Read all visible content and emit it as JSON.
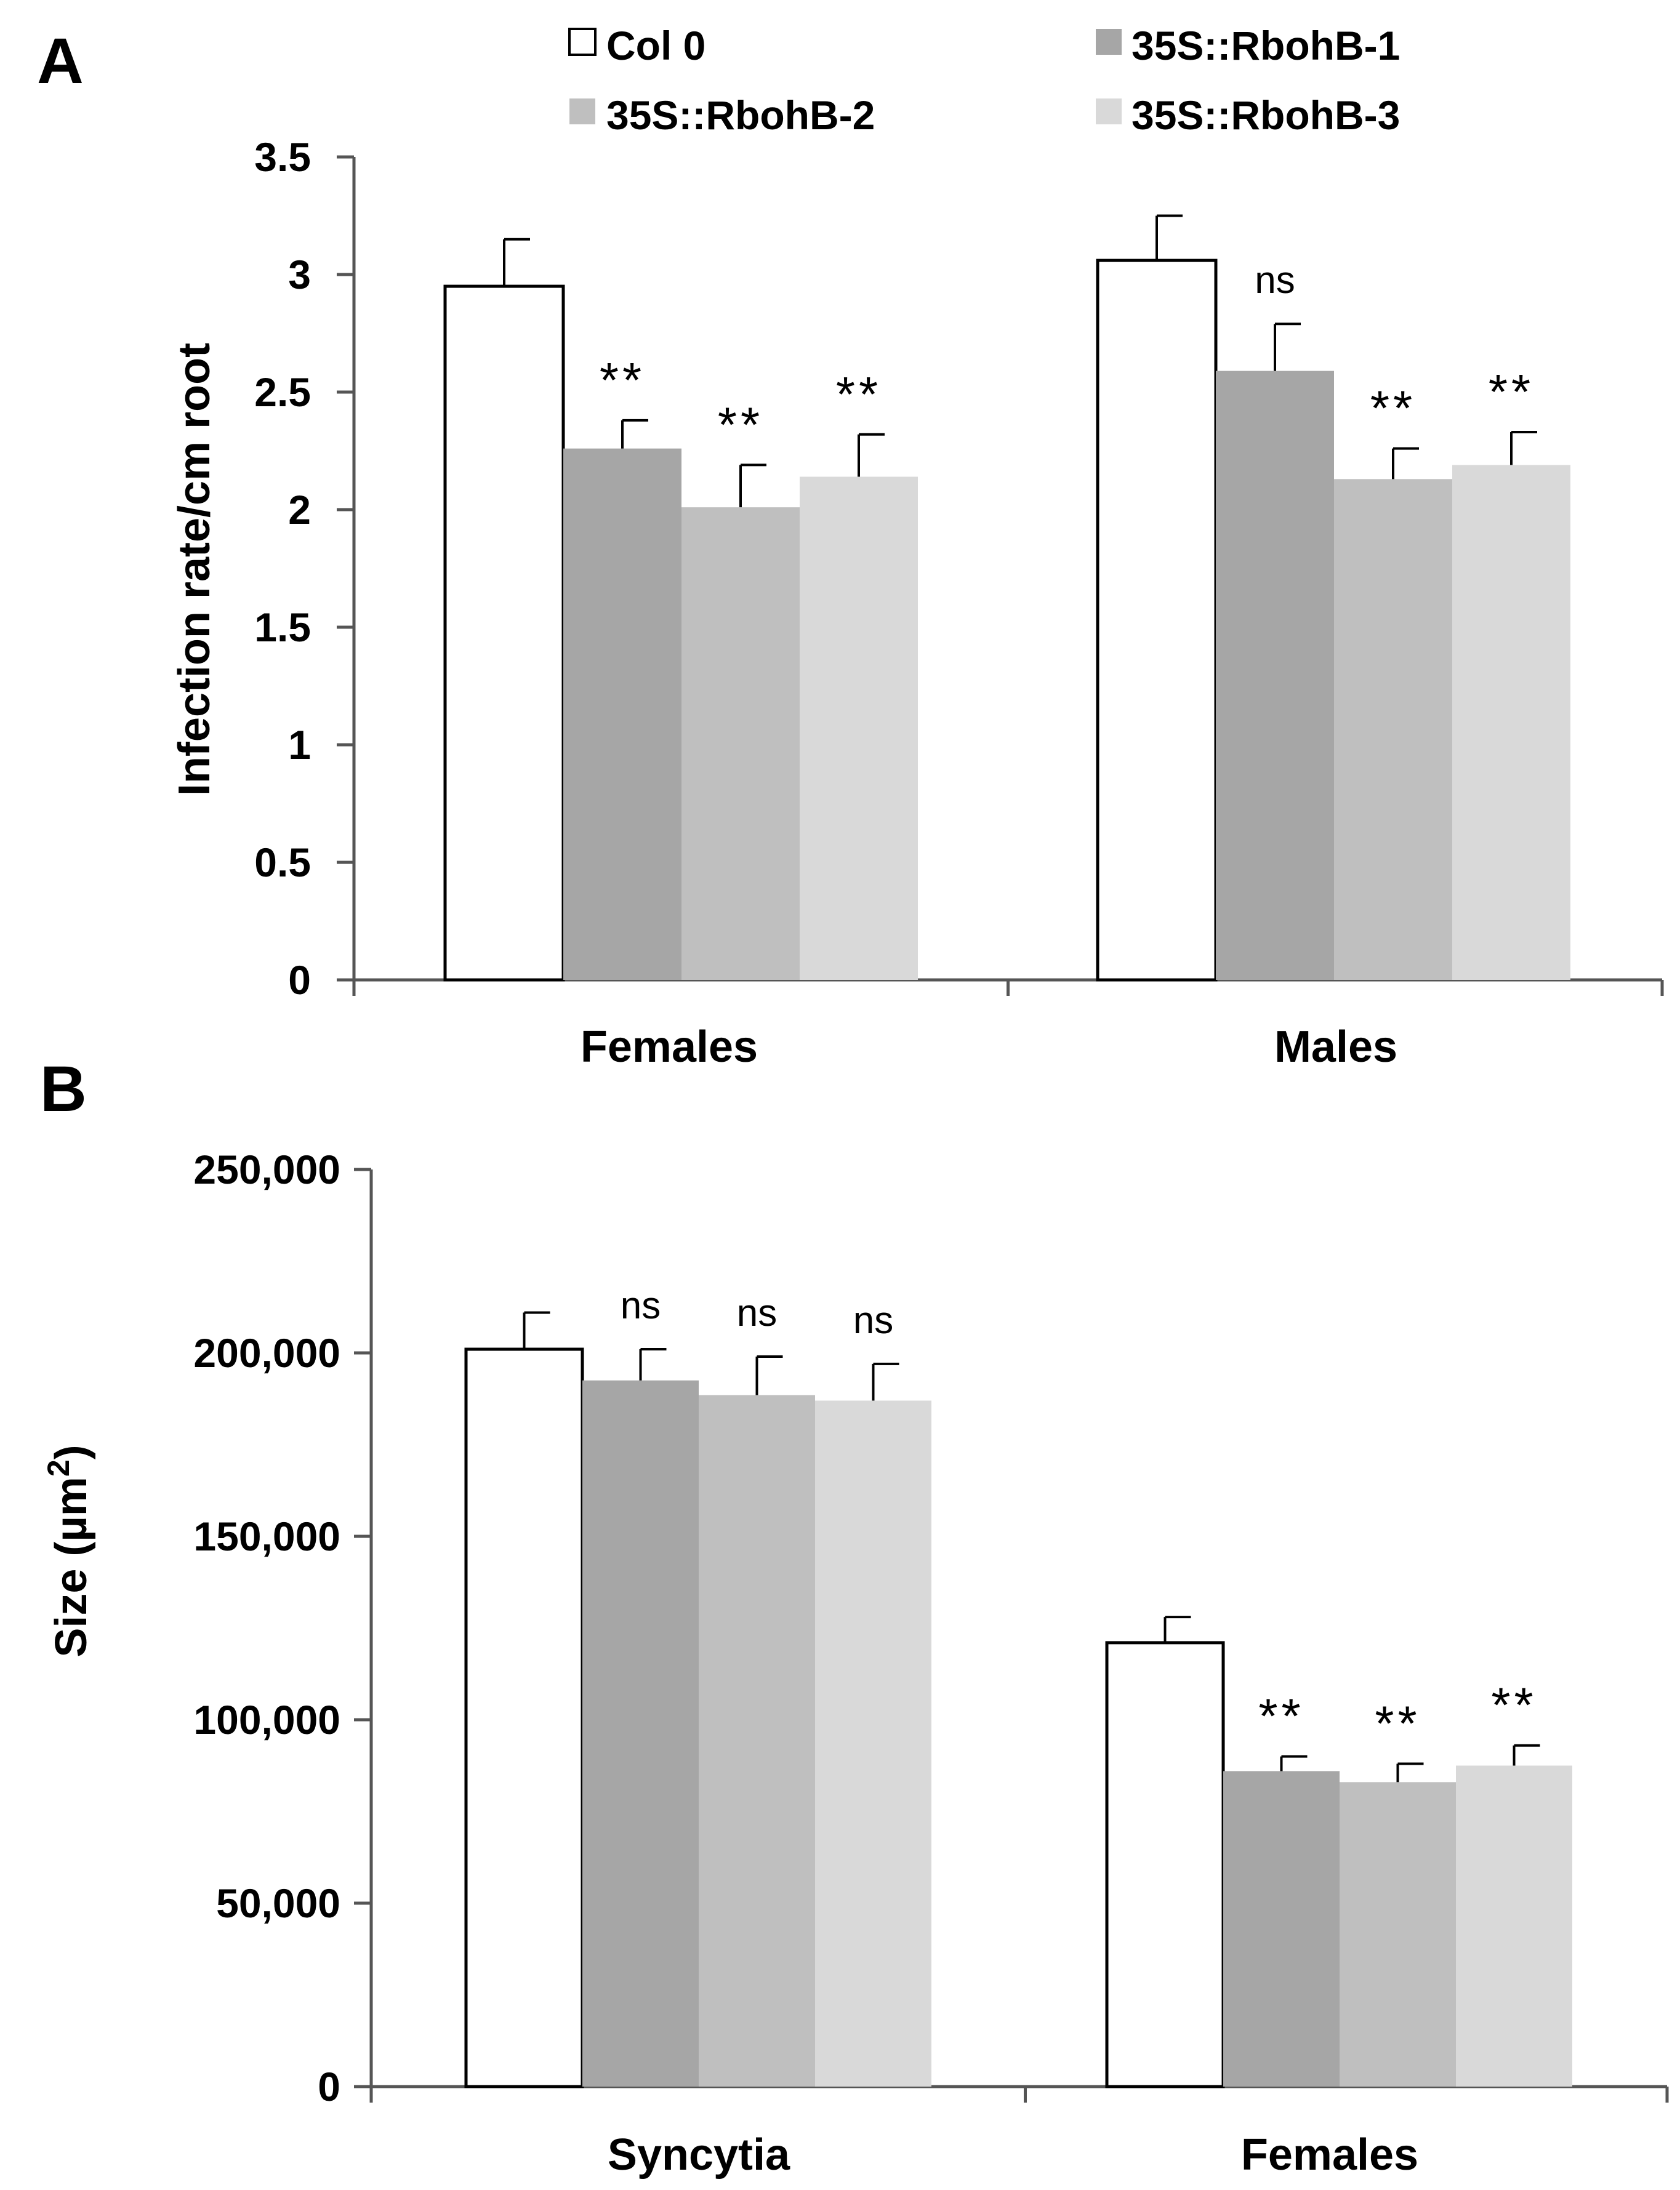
{
  "legend": [
    {
      "name": "Col 0",
      "color": "#ffffff"
    },
    {
      "name": "35S::RbohB-1",
      "color": "#a6a6a6"
    },
    {
      "name": "35S::RbohB-2",
      "color": "#bfbfbf"
    },
    {
      "name": "35S::RbohB-3",
      "color": "#d9d9d9"
    }
  ],
  "chart_data": [
    {
      "panel": "A",
      "type": "bar",
      "ylabel": "Infection rate/cm root",
      "xlabel": "",
      "ylim": [
        0,
        3.5
      ],
      "yticks": [
        "0",
        "0.5",
        "1",
        "1.5",
        "2",
        "2.5",
        "3",
        "3.5"
      ],
      "categories": [
        "Females",
        "Males"
      ],
      "series": [
        {
          "name": "Col 0",
          "values": [
            2.95,
            3.06
          ],
          "errors": [
            0.2,
            0.19
          ],
          "sig": [
            "",
            ""
          ]
        },
        {
          "name": "35S::RbohB-1",
          "values": [
            2.26,
            2.59
          ],
          "errors": [
            0.12,
            0.2
          ],
          "sig": [
            "**",
            "ns"
          ]
        },
        {
          "name": "35S::RbohB-2",
          "values": [
            2.01,
            2.13
          ],
          "errors": [
            0.18,
            0.13
          ],
          "sig": [
            "**",
            "**"
          ]
        },
        {
          "name": "35S::RbohB-3",
          "values": [
            2.14,
            2.19
          ],
          "errors": [
            0.18,
            0.14
          ],
          "sig": [
            "**",
            "**"
          ]
        }
      ]
    },
    {
      "panel": "B",
      "type": "bar",
      "ylabel": "Size (µm",
      "ylabel_sup": "2",
      "ylabel_close": ")",
      "xlabel": "",
      "ylim": [
        0,
        250000
      ],
      "yticks": [
        "0",
        "50,000",
        "100,000",
        "150,000",
        "200,000",
        "250,000"
      ],
      "categories": [
        "Syncytia",
        "Females"
      ],
      "series": [
        {
          "name": "Col 0",
          "values": [
            201000,
            121000
          ],
          "errors": [
            10000,
            7000
          ],
          "sig": [
            "",
            ""
          ]
        },
        {
          "name": "35S::RbohB-1",
          "values": [
            192500,
            86000
          ],
          "errors": [
            8500,
            4000
          ],
          "sig": [
            "ns",
            "**"
          ]
        },
        {
          "name": "35S::RbohB-2",
          "values": [
            188500,
            83000
          ],
          "errors": [
            10500,
            5000
          ],
          "sig": [
            "ns",
            "**"
          ]
        },
        {
          "name": "35S::RbohB-3",
          "values": [
            187000,
            87500
          ],
          "errors": [
            10000,
            5500
          ],
          "sig": [
            "ns",
            "**"
          ]
        }
      ]
    }
  ]
}
